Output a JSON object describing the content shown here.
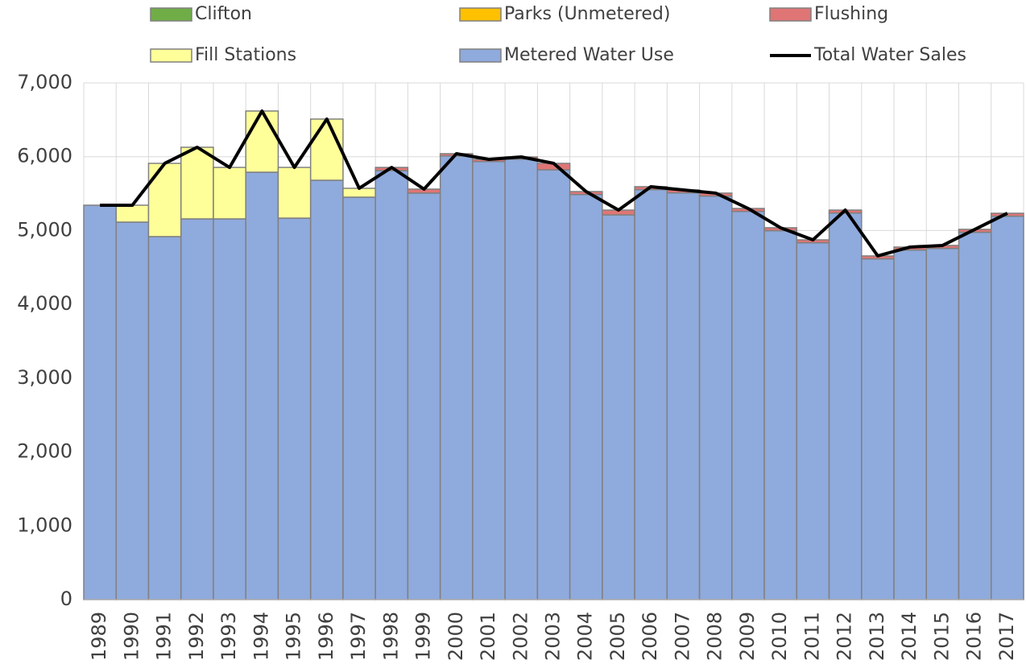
{
  "chart_data": {
    "type": "stacked-bar-line",
    "categories": [
      "1989",
      "1990",
      "1991",
      "1992",
      "1993",
      "1994",
      "1995",
      "1996",
      "1997",
      "1998",
      "1999",
      "2000",
      "2001",
      "2002",
      "2003",
      "2004",
      "2005",
      "2006",
      "2007",
      "2008",
      "2009",
      "2010",
      "2011",
      "2012",
      "2013",
      "2014",
      "2015",
      "2016",
      "2017"
    ],
    "series": [
      {
        "name": "Metered Water Use",
        "color": "#8faadc",
        "values": [
          5343,
          5114,
          4918,
          5158,
          5158,
          5790,
          5168,
          5681,
          5452,
          5812,
          5507,
          6010,
          5934,
          5967,
          5823,
          5488,
          5212,
          5554,
          5510,
          5467,
          5259,
          4998,
          4834,
          5237,
          4616,
          4736,
          4758,
          4976,
          5194
        ]
      },
      {
        "name": "Fill Stations",
        "color": "#ffff99",
        "values": [
          0,
          229,
          992,
          970,
          697,
          829,
          687,
          829,
          120,
          0,
          0,
          0,
          0,
          0,
          0,
          0,
          0,
          0,
          0,
          0,
          0,
          0,
          0,
          0,
          0,
          0,
          0,
          0,
          0
        ]
      },
      {
        "name": "Flushing",
        "color": "#e07575",
        "values": [
          0,
          0,
          0,
          0,
          0,
          0,
          0,
          0,
          0,
          43,
          54,
          31,
          30,
          30,
          87,
          40,
          65,
          40,
          40,
          40,
          40,
          40,
          40,
          40,
          40,
          40,
          40,
          40,
          40
        ]
      },
      {
        "name": "Parks (Unmetered)",
        "color": "#ffc000",
        "values": [
          0,
          0,
          0,
          0,
          0,
          0,
          0,
          0,
          0,
          0,
          0,
          0,
          0,
          0,
          0,
          0,
          0,
          0,
          0,
          0,
          0,
          0,
          0,
          0,
          0,
          0,
          0,
          0,
          0
        ]
      },
      {
        "name": "Clifton",
        "color": "#70ad47",
        "values": [
          0,
          0,
          0,
          0,
          0,
          0,
          0,
          0,
          0,
          0,
          0,
          0,
          0,
          0,
          0,
          0,
          0,
          0,
          0,
          0,
          0,
          0,
          0,
          0,
          0,
          0,
          0,
          0,
          0
        ]
      },
      {
        "name": "Total Water Sales",
        "color": "#000000",
        "type": "line",
        "values": [
          5343,
          5343,
          5910,
          6128,
          5855,
          6619,
          5855,
          6510,
          5572,
          5855,
          5561,
          6041,
          5964,
          5997,
          5910,
          5528,
          5277,
          5594,
          5550,
          5507,
          5299,
          5038,
          4874,
          5277,
          4656,
          4776,
          4798,
          5016,
          5234
        ]
      }
    ],
    "ylim": [
      0,
      7000
    ],
    "yticks": [
      0,
      {
        "value": 1000,
        "label": "1,000"
      },
      {
        "value": 2000,
        "label": "2,000"
      },
      {
        "value": 3000,
        "label": "3,000"
      },
      {
        "value": 4000,
        "label": "4,000"
      },
      {
        "value": 5000,
        "label": "5,000"
      },
      {
        "value": 6000,
        "label": "6,000"
      },
      {
        "value": 7000,
        "label": "7,000"
      }
    ],
    "grid": true
  }
}
